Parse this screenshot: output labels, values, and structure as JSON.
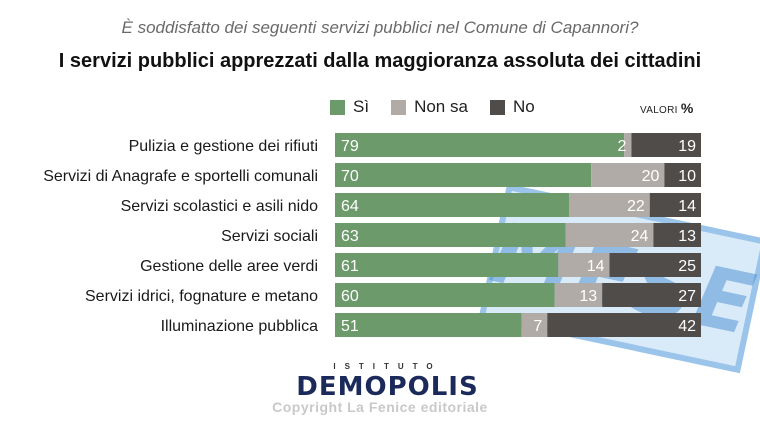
{
  "chart_data": {
    "type": "bar",
    "orientation": "horizontal",
    "stacked": true,
    "subtitle": "È soddisfatto dei seguenti servizi pubblici nel Comune di Capannori?",
    "title": "I servizi pubblici apprezzati dalla maggioranza assoluta dei cittadini",
    "unit_label": "VALORI",
    "unit_symbol": "%",
    "categories": [
      "Pulizia e gestione dei rifiuti",
      "Servizi di Anagrafe e sportelli comunali",
      "Servizi scolastici e asili nido",
      "Servizi sociali",
      "Gestione delle aree verdi",
      "Servizi idrici, fognature e metano",
      "Illuminazione pubblica"
    ],
    "series": [
      {
        "name": "Sì",
        "color": "#6d9a6b",
        "values": [
          79,
          70,
          64,
          63,
          61,
          60,
          51
        ]
      },
      {
        "name": "Non sa",
        "color": "#b0aba6",
        "values": [
          2,
          20,
          22,
          24,
          14,
          13,
          7
        ]
      },
      {
        "name": "No",
        "color": "#4f4c49",
        "values": [
          19,
          10,
          14,
          13,
          25,
          27,
          42
        ]
      }
    ],
    "xlim": [
      0,
      100
    ],
    "legend_position": "top",
    "grid": false
  },
  "watermark_text": "MESE",
  "logo": {
    "top": "ISTITUTO",
    "brand": "DEMOPOLIS"
  },
  "copyright": "Copyright La Fenice editoriale"
}
